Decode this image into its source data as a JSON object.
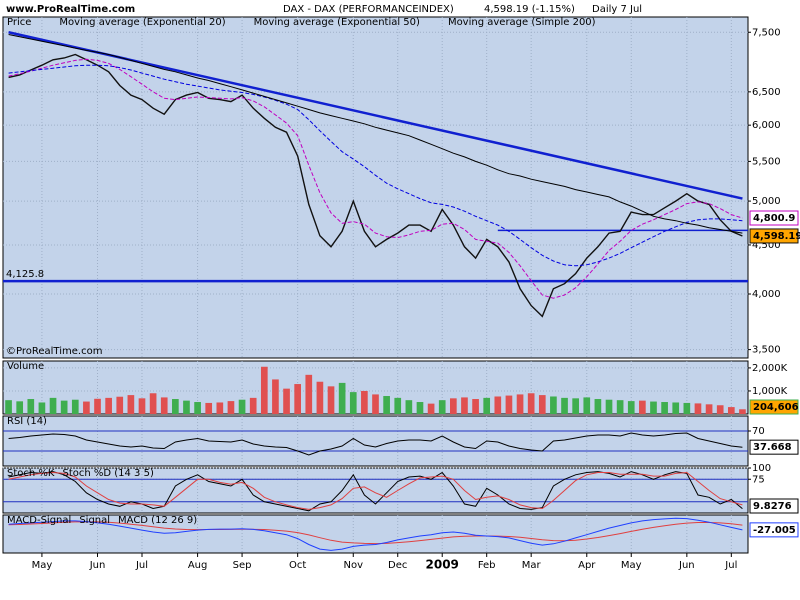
{
  "header": {
    "site": "www.ProRealTime.com",
    "credit": "©ProRealTime.com"
  },
  "chart_data": [
    {
      "type": "line",
      "title": "DAX - DAX (PERFORMANCEINDEX)",
      "last_change": "4,598.19 (-1.15%)",
      "period": "Daily  7 Jul",
      "log": true,
      "grid": true,
      "ylim": [
        3430,
        7780
      ],
      "yticks": [
        {
          "value": 7500,
          "label": "7,500"
        },
        {
          "value": 6500,
          "label": "6,500"
        },
        {
          "value": 6000,
          "label": "6,000"
        },
        {
          "value": 5500,
          "label": "5,500"
        },
        {
          "value": 5000,
          "label": "5,000"
        },
        {
          "value": 4500,
          "label": "4,500"
        },
        {
          "value": 4000,
          "label": "4,000"
        },
        {
          "value": 3500,
          "label": "3,500"
        }
      ],
      "categories": [
        null,
        null,
        null,
        "May",
        null,
        null,
        null,
        null,
        "Jun",
        null,
        null,
        null,
        "Jul",
        null,
        null,
        null,
        null,
        "Aug",
        null,
        null,
        null,
        "Sep",
        null,
        null,
        null,
        null,
        "Oct",
        null,
        null,
        null,
        null,
        "Nov",
        null,
        null,
        null,
        "Dec",
        null,
        null,
        null,
        "2009",
        null,
        null,
        null,
        "Feb",
        null,
        null,
        null,
        "Mar",
        null,
        null,
        null,
        null,
        "Apr",
        null,
        null,
        null,
        "May",
        null,
        null,
        null,
        null,
        "Jun",
        null,
        null,
        null,
        "Jul",
        null
      ],
      "hlines": [
        {
          "value": 4125.8,
          "label": "4,125.8"
        },
        {
          "value": 4660,
          "from": 44
        }
      ],
      "trendline": {
        "from": [
          0,
          7500
        ],
        "to": [
          66,
          5030
        ]
      },
      "series": [
        {
          "name": "Price",
          "color": "#111111",
          "width": 1.4,
          "label_fill": "#ffa500",
          "last_label": "4,598.19",
          "values": [
            6730,
            6770,
            6850,
            6930,
            7020,
            7050,
            7110,
            7020,
            6930,
            6820,
            6600,
            6450,
            6380,
            6250,
            6160,
            6380,
            6450,
            6490,
            6400,
            6380,
            6350,
            6450,
            6250,
            6100,
            5970,
            5900,
            5570,
            4960,
            4600,
            4480,
            4650,
            5000,
            4650,
            4480,
            4560,
            4630,
            4720,
            4720,
            4650,
            4900,
            4720,
            4480,
            4360,
            4560,
            4480,
            4320,
            4050,
            3890,
            3790,
            4050,
            4100,
            4200,
            4360,
            4480,
            4630,
            4650,
            4870,
            4840,
            4840,
            4920,
            5000,
            5090,
            5000,
            4960,
            4780,
            4650,
            4598.19
          ]
        },
        {
          "name": "Moving average (Exponential 20)",
          "color": "#c000c0",
          "dash": true,
          "width": 1,
          "last_label": "4,800.9",
          "values": [
            6750,
            6790,
            6830,
            6880,
            6930,
            6970,
            7010,
            7030,
            7010,
            6960,
            6860,
            6740,
            6620,
            6500,
            6400,
            6380,
            6400,
            6420,
            6410,
            6400,
            6390,
            6410,
            6360,
            6270,
            6150,
            6030,
            5850,
            5450,
            5100,
            4860,
            4740,
            4760,
            4730,
            4630,
            4590,
            4580,
            4610,
            4650,
            4660,
            4730,
            4740,
            4670,
            4560,
            4540,
            4520,
            4420,
            4280,
            4130,
            3990,
            3960,
            3990,
            4060,
            4170,
            4300,
            4440,
            4540,
            4660,
            4730,
            4780,
            4840,
            4900,
            4970,
            4990,
            4970,
            4910,
            4840,
            4800.9
          ]
        },
        {
          "name": "Moving average (Exponential 50)",
          "color": "#0000e0",
          "dash": true,
          "width": 1,
          "values": [
            6800,
            6820,
            6840,
            6860,
            6880,
            6900,
            6920,
            6930,
            6930,
            6920,
            6890,
            6850,
            6800,
            6750,
            6700,
            6660,
            6620,
            6590,
            6560,
            6530,
            6510,
            6490,
            6460,
            6420,
            6370,
            6310,
            6230,
            6080,
            5920,
            5770,
            5630,
            5530,
            5430,
            5320,
            5220,
            5150,
            5090,
            5030,
            4980,
            4960,
            4930,
            4880,
            4820,
            4770,
            4720,
            4650,
            4560,
            4470,
            4390,
            4330,
            4290,
            4280,
            4290,
            4320,
            4360,
            4410,
            4470,
            4530,
            4590,
            4650,
            4700,
            4750,
            4780,
            4790,
            4790,
            4780,
            4770
          ]
        },
        {
          "name": "Moving average (Simple 200)",
          "color": "#000000",
          "width": 1,
          "values": [
            7460,
            7420,
            7380,
            7340,
            7300,
            7260,
            7220,
            7180,
            7150,
            7110,
            7060,
            7010,
            6960,
            6910,
            6860,
            6820,
            6770,
            6720,
            6680,
            6630,
            6580,
            6530,
            6480,
            6430,
            6380,
            6330,
            6280,
            6230,
            6180,
            6140,
            6100,
            6060,
            6020,
            5970,
            5930,
            5890,
            5850,
            5790,
            5730,
            5670,
            5610,
            5560,
            5500,
            5450,
            5390,
            5340,
            5310,
            5270,
            5240,
            5210,
            5180,
            5140,
            5110,
            5080,
            5050,
            4990,
            4940,
            4880,
            4820,
            4790,
            4770,
            4740,
            4720,
            4690,
            4670,
            4650,
            4630
          ]
        }
      ]
    },
    {
      "type": "bar",
      "grid": true,
      "ylim": [
        0,
        2300000
      ],
      "yticks": [
        {
          "value": 2000000,
          "label": "2,000K"
        },
        {
          "value": 1000000,
          "label": "1,000K"
        }
      ],
      "series": [
        {
          "name": "Volume",
          "color": "#3fae4f",
          "down_color": "#e05050",
          "label_fill": "#ffa500",
          "last_label": "204,606",
          "values": [
            600000,
            550000,
            650000,
            500000,
            700000,
            580000,
            620000,
            540000,
            660000,
            700000,
            750000,
            820000,
            680000,
            900000,
            720000,
            650000,
            580000,
            520000,
            480000,
            500000,
            560000,
            620000,
            700000,
            2050000,
            1500000,
            1100000,
            1300000,
            1700000,
            1400000,
            1200000,
            1350000,
            950000,
            1000000,
            850000,
            780000,
            700000,
            600000,
            520000,
            450000,
            600000,
            680000,
            720000,
            650000,
            700000,
            760000,
            800000,
            850000,
            900000,
            820000,
            760000,
            700000,
            680000,
            720000,
            650000,
            620000,
            600000,
            560000,
            580000,
            540000,
            520000,
            500000,
            480000,
            460000,
            420000,
            380000,
            300000,
            204606
          ]
        }
      ]
    },
    {
      "type": "line",
      "grid": true,
      "ylim": [
        0,
        100
      ],
      "yticks": [
        70
      ],
      "levels": [
        70,
        30
      ],
      "series": [
        {
          "name": "RSI (14)",
          "color": "#000000",
          "width": 1,
          "last_box": true,
          "values": [
            55,
            57,
            60,
            62,
            64,
            63,
            60,
            52,
            48,
            44,
            40,
            38,
            40,
            36,
            35,
            48,
            52,
            55,
            50,
            49,
            48,
            52,
            44,
            40,
            38,
            37,
            30,
            22,
            30,
            34,
            40,
            55,
            42,
            38,
            45,
            50,
            52,
            52,
            50,
            60,
            48,
            38,
            35,
            50,
            48,
            40,
            35,
            32,
            30,
            50,
            52,
            56,
            60,
            62,
            62,
            60,
            66,
            62,
            60,
            62,
            65,
            66,
            55,
            50,
            45,
            40,
            37.668
          ]
        }
      ]
    },
    {
      "type": "line",
      "grid": true,
      "ylim": [
        0,
        100
      ],
      "yticks": [
        100,
        75
      ],
      "levels": [
        75,
        25
      ],
      "series": [
        {
          "name": "Stoch %K",
          "color": "#000000",
          "width": 1,
          "last_box": true,
          "values": [
            80,
            85,
            90,
            88,
            92,
            85,
            70,
            45,
            30,
            20,
            15,
            25,
            20,
            10,
            15,
            60,
            75,
            85,
            70,
            65,
            60,
            75,
            40,
            25,
            20,
            15,
            10,
            5,
            20,
            25,
            50,
            85,
            40,
            20,
            45,
            70,
            80,
            82,
            75,
            90,
            60,
            20,
            15,
            55,
            40,
            20,
            10,
            8,
            12,
            60,
            75,
            85,
            90,
            92,
            88,
            80,
            92,
            85,
            75,
            85,
            92,
            88,
            40,
            35,
            20,
            30,
            9.8276
          ]
        },
        {
          "name": "Stoch %D (14 3 5)",
          "color": "#e04040",
          "width": 1,
          "values": [
            75,
            80,
            85,
            88,
            90,
            88,
            80,
            60,
            45,
            30,
            22,
            20,
            20,
            18,
            15,
            35,
            55,
            75,
            75,
            68,
            64,
            68,
            55,
            35,
            25,
            18,
            12,
            8,
            12,
            18,
            32,
            55,
            58,
            45,
            35,
            50,
            65,
            78,
            80,
            82,
            75,
            50,
            30,
            35,
            38,
            30,
            18,
            12,
            10,
            28,
            50,
            72,
            85,
            90,
            90,
            86,
            86,
            86,
            82,
            82,
            88,
            90,
            70,
            50,
            32,
            25,
            18
          ]
        }
      ]
    },
    {
      "type": "line",
      "title": "MACD-Signal",
      "grid": true,
      "ylim": [
        -380,
        200
      ],
      "series": [
        {
          "name": "Signal",
          "color": "#e04040",
          "width": 1,
          "values": [
            50,
            55,
            62,
            70,
            80,
            88,
            95,
            98,
            95,
            88,
            76,
            60,
            42,
            20,
            0,
            -14,
            -21,
            -23,
            -22,
            -21,
            -20,
            -18,
            -18,
            -22,
            -32,
            -46,
            -68,
            -104,
            -147,
            -186,
            -213,
            -226,
            -233,
            -236,
            -233,
            -222,
            -208,
            -190,
            -172,
            -152,
            -134,
            -123,
            -120,
            -120,
            -122,
            -128,
            -140,
            -158,
            -178,
            -190,
            -192,
            -184,
            -167,
            -144,
            -115,
            -84,
            -51,
            -19,
            11,
            37,
            59,
            76,
            85,
            86,
            79,
            65,
            46
          ]
        },
        {
          "name": "MACD (12 26 9)",
          "color": "#2040ff",
          "width": 1,
          "last_box": true,
          "values": [
            60,
            70,
            80,
            90,
            100,
            110,
            110,
            100,
            80,
            60,
            30,
            0,
            -30,
            -60,
            -80,
            -70,
            -50,
            -30,
            -20,
            -15,
            -15,
            -10,
            -20,
            -40,
            -70,
            -100,
            -160,
            -250,
            -320,
            -340,
            -320,
            -280,
            -260,
            -250,
            -220,
            -180,
            -150,
            -120,
            -100,
            -70,
            -60,
            -80,
            -110,
            -120,
            -130,
            -150,
            -190,
            -230,
            -260,
            -240,
            -200,
            -150,
            -100,
            -50,
            0,
            40,
            80,
            110,
            130,
            140,
            150,
            145,
            120,
            90,
            50,
            10,
            -27.005
          ]
        }
      ]
    }
  ]
}
